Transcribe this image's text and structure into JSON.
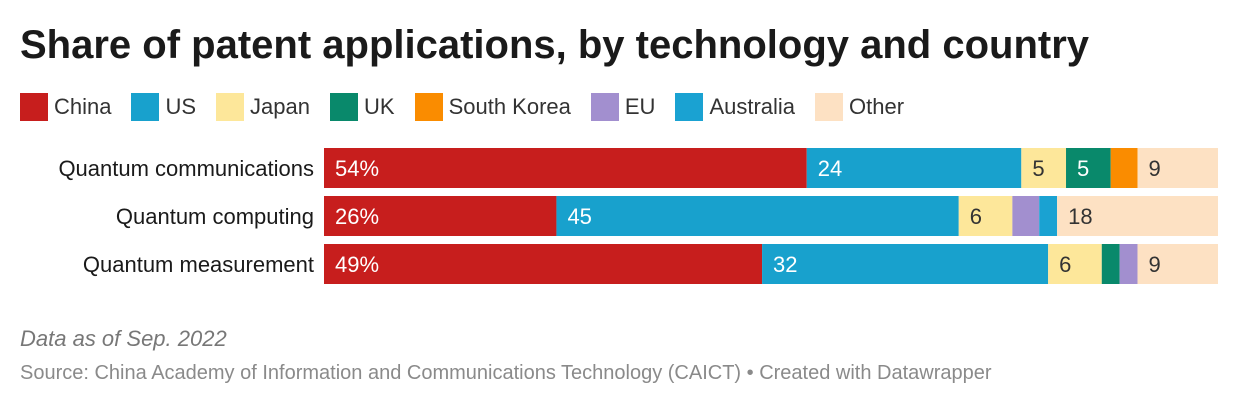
{
  "chart_data": {
    "type": "bar",
    "orientation": "horizontal",
    "stacked": true,
    "title": "Share of patent applications, by technology and country",
    "categories": [
      "Quantum communications",
      "Quantum computing",
      "Quantum measurement"
    ],
    "series": [
      {
        "name": "China",
        "color": "#c71e1d",
        "values": [
          54,
          26,
          49
        ],
        "labels": [
          "54%",
          "26%",
          "49%"
        ]
      },
      {
        "name": "US",
        "color": "#18a1cd",
        "values": [
          24,
          45,
          32
        ],
        "labels": [
          "24",
          "45",
          "32"
        ]
      },
      {
        "name": "Japan",
        "color": "#fde79a",
        "values": [
          5,
          6,
          6
        ],
        "labels": [
          "5",
          "6",
          "6"
        ]
      },
      {
        "name": "UK",
        "color": "#09896b",
        "values": [
          5,
          0,
          2
        ],
        "labels": [
          "5",
          "",
          ""
        ]
      },
      {
        "name": "South Korea",
        "color": "#fa8c00",
        "values": [
          3,
          0,
          0
        ],
        "labels": [
          "",
          "",
          ""
        ]
      },
      {
        "name": "EU",
        "color": "#a28fcf",
        "values": [
          0,
          3,
          2
        ],
        "labels": [
          "",
          "",
          ""
        ]
      },
      {
        "name": "Australia",
        "color": "#1aa2d2",
        "values": [
          0,
          2,
          0
        ],
        "labels": [
          "",
          "",
          ""
        ]
      },
      {
        "name": "Other",
        "color": "#fde1c3",
        "values": [
          9,
          18,
          9
        ],
        "labels": [
          "9",
          "18",
          "9"
        ]
      }
    ],
    "xlim": [
      0,
      100
    ],
    "grid": false,
    "legend": "top"
  },
  "note": "Data as of Sep. 2022",
  "source": "Source: China Academy of Information and Communications Technology (CAICT) • Created with Datawrapper"
}
